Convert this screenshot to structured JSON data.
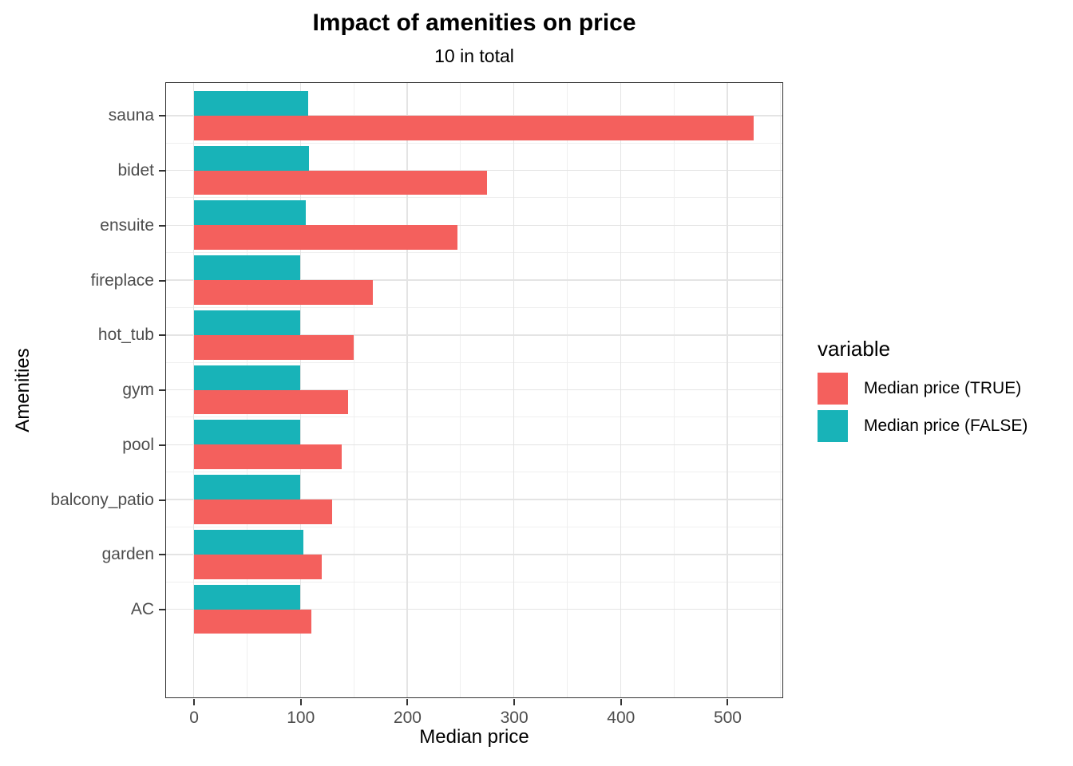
{
  "chart_data": {
    "type": "bar",
    "orientation": "horizontal",
    "title": "Impact of amenities on price",
    "subtitle": "10 in total",
    "xlabel": "Median price",
    "ylabel": "Amenities",
    "categories": [
      "sauna",
      "bidet",
      "ensuite",
      "fireplace",
      "hot_tub",
      "gym",
      "pool",
      "balcony_patio",
      "garden",
      "AC"
    ],
    "series": [
      {
        "name": "Median price (TRUE)",
        "color": "#F4605D",
        "values": [
          525,
          275,
          247,
          168,
          150,
          145,
          139,
          130,
          120,
          110
        ]
      },
      {
        "name": "Median price (FALSE)",
        "color": "#18B3B8",
        "values": [
          107,
          108,
          105,
          100,
          100,
          100,
          100,
          100,
          103,
          100
        ]
      }
    ],
    "legend": {
      "title": "variable",
      "position": "right"
    },
    "x_ticks": [
      0,
      100,
      200,
      300,
      400,
      500
    ],
    "x_minor_ticks": [
      50,
      150,
      250,
      350,
      450,
      550
    ],
    "xlim": [
      -26.25,
      551.25
    ],
    "grid": true,
    "colors": {
      "grid_major": "#E4E4E4",
      "grid_minor": "#EFEFEF",
      "panel_border": "#333333",
      "tick_mark": "#333333",
      "tick_label": "#4D4D4D"
    }
  }
}
